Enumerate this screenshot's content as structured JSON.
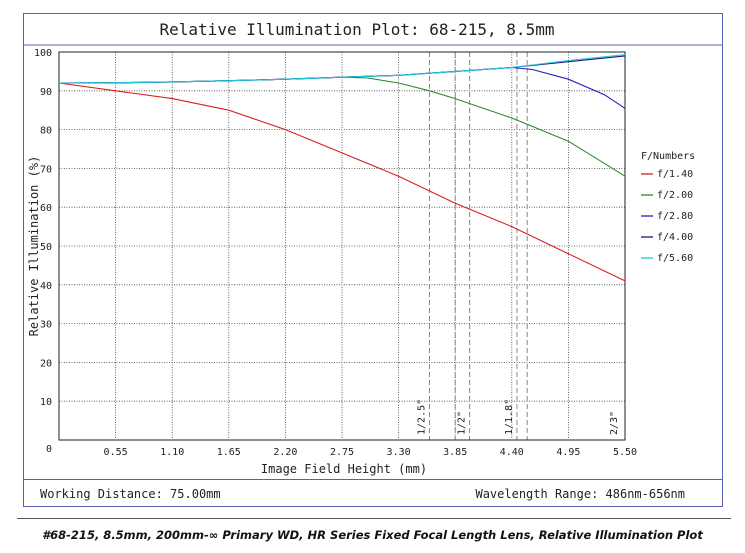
{
  "chart_data": {
    "type": "line",
    "title": "Relative Illumination Plot: 68-215, 8.5mm",
    "xlabel": "Image Field Height (mm)",
    "ylabel": "Relative Illumination (%)",
    "xlim": [
      0,
      5.5
    ],
    "ylim": [
      0,
      100
    ],
    "x_ticks": [
      "0.55",
      "1.10",
      "1.65",
      "2.20",
      "2.75",
      "3.30",
      "3.85",
      "4.40",
      "4.95",
      "5.50"
    ],
    "y_ticks": [
      "0",
      "10",
      "20",
      "30",
      "40",
      "50",
      "60",
      "70",
      "80",
      "90",
      "100"
    ],
    "grid": true,
    "legend_title": "F/Numbers",
    "legend_position": "right",
    "series": [
      {
        "name": "f/1.40",
        "color": "#d62020",
        "x": [
          0,
          0.55,
          1.1,
          1.65,
          2.2,
          2.75,
          3.3,
          3.85,
          4.4,
          4.95,
          5.5
        ],
        "y": [
          92,
          90,
          88,
          85,
          80,
          74,
          68,
          61,
          55,
          48,
          41
        ]
      },
      {
        "name": "f/2.00",
        "color": "#2e8b2e",
        "x": [
          0,
          0.55,
          1.1,
          1.65,
          2.2,
          2.75,
          3.0,
          3.3,
          3.6,
          3.85,
          4.4,
          4.95,
          5.5
        ],
        "y": [
          92,
          92,
          92.3,
          92.6,
          93,
          93.5,
          93.3,
          92,
          90,
          88,
          83,
          77,
          68
        ]
      },
      {
        "name": "f/2.80",
        "color": "#2020c0",
        "x": [
          0,
          0.55,
          1.1,
          1.65,
          2.2,
          2.75,
          3.3,
          3.85,
          4.4,
          4.6,
          4.95,
          5.3,
          5.5
        ],
        "y": [
          92,
          92.1,
          92.3,
          92.6,
          93,
          93.5,
          94,
          95,
          96,
          95.5,
          93,
          89,
          85.5
        ]
      },
      {
        "name": "f/4.00",
        "color": "#1a1a80",
        "x": [
          0,
          0.55,
          1.1,
          1.65,
          2.2,
          2.75,
          3.3,
          3.85,
          4.4,
          4.95,
          5.5
        ],
        "y": [
          92,
          92.1,
          92.3,
          92.6,
          93,
          93.5,
          94,
          95,
          96,
          97.5,
          99
        ]
      },
      {
        "name": "f/5.60",
        "color": "#20c8d8",
        "x": [
          0,
          0.55,
          1.1,
          1.65,
          2.2,
          2.75,
          3.3,
          3.85,
          4.4,
          4.95,
          5.5
        ],
        "y": [
          92,
          92.1,
          92.3,
          92.6,
          93,
          93.5,
          94,
          95,
          96,
          97.8,
          99.3
        ]
      }
    ],
    "sensor_markers": [
      {
        "label": "1/2.5\"",
        "x": 3.6
      },
      {
        "label": "1/2\"",
        "x": 3.99
      },
      {
        "label": "1/1.8\"",
        "x": 4.45
      },
      {
        "label": "2/3\"",
        "x": 5.5
      }
    ],
    "sensor_marker_extra_lines": [
      3.85,
      4.55
    ]
  },
  "footer": {
    "working_distance": "Working Distance: 75.00mm",
    "wavelength_range": "Wavelength Range: 486nm-656nm"
  },
  "caption": "#68-215, 8.5mm, 200mm-∞ Primary WD, HR Series Fixed Focal Length Lens, Relative Illumination Plot"
}
